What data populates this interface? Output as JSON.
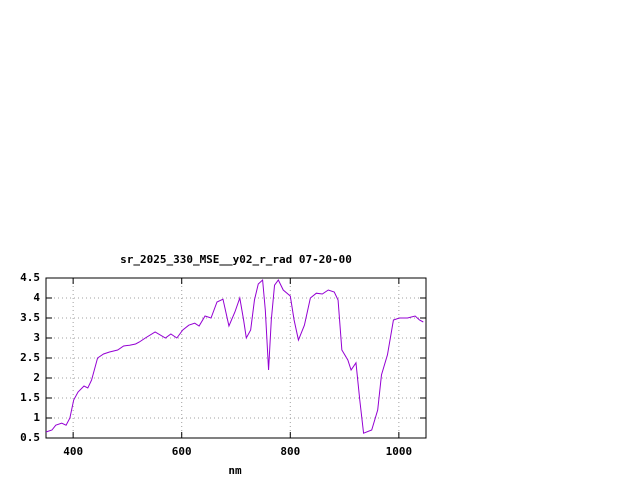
{
  "chart_data": {
    "type": "line",
    "title": "sr_2025_330_MSE__y02_r_rad 07-20-00",
    "x_label": "nm",
    "x": [
      350,
      361,
      368,
      379,
      387,
      394,
      401,
      409,
      420,
      427,
      434,
      445,
      456,
      467,
      482,
      493,
      504,
      515,
      522,
      533,
      551,
      570,
      580,
      591,
      602,
      613,
      624,
      632,
      643,
      654,
      665,
      676,
      687,
      698,
      707,
      714,
      719,
      727,
      734,
      741,
      749,
      754,
      760,
      765,
      771,
      778,
      787,
      800,
      807,
      815,
      826,
      837,
      848,
      859,
      870,
      881,
      888,
      895,
      906,
      912,
      921,
      928,
      935,
      950,
      961,
      968,
      979,
      990,
      1001,
      1016,
      1030,
      1038,
      1045
    ],
    "values": [
      0.65,
      0.7,
      0.82,
      0.87,
      0.82,
      1.0,
      1.45,
      1.65,
      1.8,
      1.75,
      1.95,
      2.5,
      2.6,
      2.65,
      2.7,
      2.8,
      2.82,
      2.85,
      2.9,
      3.0,
      3.15,
      3.0,
      3.1,
      3.0,
      3.2,
      3.32,
      3.37,
      3.3,
      3.55,
      3.5,
      3.9,
      3.97,
      3.3,
      3.65,
      4.0,
      3.45,
      3.0,
      3.2,
      3.95,
      4.35,
      4.45,
      3.7,
      2.2,
      3.45,
      4.32,
      4.45,
      4.2,
      4.05,
      3.45,
      2.95,
      3.32,
      4.0,
      4.12,
      4.1,
      4.2,
      4.15,
      3.95,
      2.7,
      2.45,
      2.2,
      2.38,
      1.45,
      0.62,
      0.7,
      1.2,
      2.08,
      2.58,
      3.45,
      3.5,
      3.5,
      3.55,
      3.45,
      3.4
    ],
    "color": "#9400d3",
    "xlim": [
      350,
      1050
    ],
    "ylim": [
      0.5,
      4.5
    ],
    "xticks": [
      400,
      600,
      800,
      1000
    ],
    "yticks": [
      0.5,
      1,
      1.5,
      2,
      2.5,
      3,
      3.5,
      4,
      4.5
    ],
    "grid": true
  }
}
